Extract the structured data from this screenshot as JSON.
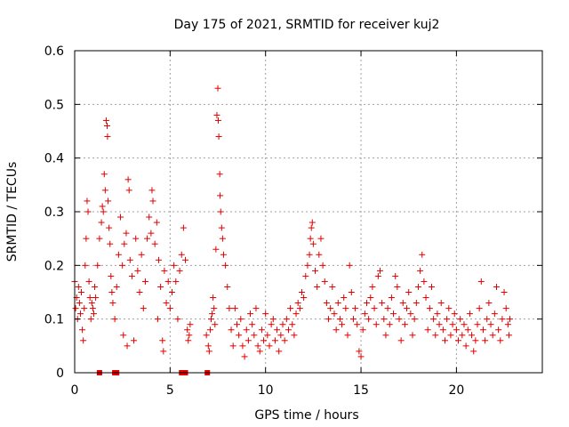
{
  "chart_data": {
    "type": "scatter",
    "title": "Day 175 of 2021, SRMTID for receiver kuj2",
    "xlabel": "GPS time / hours",
    "ylabel": "SRMTID / TECUs",
    "xlim": [
      0,
      24.5
    ],
    "ylim": [
      0,
      0.6
    ],
    "grid": true,
    "marker": "+",
    "color": "#e00000",
    "xticks": [
      0,
      5,
      10,
      15,
      20
    ],
    "xtick_labels": [
      "0",
      "5",
      "10",
      "15",
      "20"
    ],
    "yticks": [
      0,
      0.1,
      0.2,
      0.3,
      0.4,
      0.5,
      0.6
    ],
    "ytick_labels": [
      "0",
      "0.1",
      "0.2",
      "0.3",
      "0.4",
      "0.5",
      "0.6"
    ],
    "series": [
      {
        "name": "SRMTID",
        "points": [
          [
            0.0,
            0.17
          ],
          [
            0.05,
            0.12
          ],
          [
            0.1,
            0.14
          ],
          [
            0.15,
            0.1
          ],
          [
            0.2,
            0.16
          ],
          [
            0.25,
            0.13
          ],
          [
            0.3,
            0.11
          ],
          [
            0.35,
            0.15
          ],
          [
            0.4,
            0.08
          ],
          [
            0.45,
            0.06
          ],
          [
            0.5,
            0.12
          ],
          [
            0.55,
            0.2
          ],
          [
            0.6,
            0.25
          ],
          [
            0.65,
            0.32
          ],
          [
            0.7,
            0.3
          ],
          [
            0.75,
            0.17
          ],
          [
            0.8,
            0.14
          ],
          [
            0.85,
            0.1
          ],
          [
            0.9,
            0.13
          ],
          [
            0.95,
            0.12
          ],
          [
            1.0,
            0.11
          ],
          [
            1.05,
            0.16
          ],
          [
            1.1,
            0.14
          ],
          [
            1.2,
            0.2
          ],
          [
            1.3,
            0.25
          ],
          [
            1.4,
            0.28
          ],
          [
            1.45,
            0.31
          ],
          [
            1.5,
            0.3
          ],
          [
            1.55,
            0.37
          ],
          [
            1.6,
            0.34
          ],
          [
            1.65,
            0.47
          ],
          [
            1.7,
            0.46
          ],
          [
            1.72,
            0.44
          ],
          [
            1.75,
            0.32
          ],
          [
            1.8,
            0.27
          ],
          [
            1.85,
            0.24
          ],
          [
            1.9,
            0.18
          ],
          [
            1.95,
            0.15
          ],
          [
            2.0,
            0.13
          ],
          [
            2.1,
            0.1
          ],
          [
            2.2,
            0.16
          ],
          [
            2.3,
            0.22
          ],
          [
            2.4,
            0.29
          ],
          [
            2.5,
            0.2
          ],
          [
            2.55,
            0.07
          ],
          [
            2.6,
            0.24
          ],
          [
            2.7,
            0.26
          ],
          [
            2.75,
            0.05
          ],
          [
            2.8,
            0.36
          ],
          [
            2.85,
            0.34
          ],
          [
            2.9,
            0.21
          ],
          [
            3.0,
            0.18
          ],
          [
            3.1,
            0.06
          ],
          [
            3.2,
            0.25
          ],
          [
            3.3,
            0.19
          ],
          [
            3.4,
            0.15
          ],
          [
            3.5,
            0.22
          ],
          [
            3.6,
            0.12
          ],
          [
            3.7,
            0.17
          ],
          [
            3.8,
            0.25
          ],
          [
            3.9,
            0.29
          ],
          [
            4.0,
            0.26
          ],
          [
            4.05,
            0.34
          ],
          [
            4.1,
            0.32
          ],
          [
            4.2,
            0.24
          ],
          [
            4.3,
            0.28
          ],
          [
            4.35,
            0.1
          ],
          [
            4.4,
            0.21
          ],
          [
            4.5,
            0.16
          ],
          [
            4.6,
            0.06
          ],
          [
            4.65,
            0.04
          ],
          [
            4.7,
            0.19
          ],
          [
            4.8,
            0.13
          ],
          [
            4.9,
            0.17
          ],
          [
            5.0,
            0.12
          ],
          [
            5.1,
            0.15
          ],
          [
            5.2,
            0.2
          ],
          [
            5.3,
            0.17
          ],
          [
            5.4,
            0.1
          ],
          [
            5.5,
            0.19
          ],
          [
            5.6,
            0.22
          ],
          [
            5.7,
            0.27
          ],
          [
            5.8,
            0.21
          ],
          [
            5.9,
            0.08
          ],
          [
            5.95,
            0.06
          ],
          [
            6.0,
            0.07
          ],
          [
            6.05,
            0.09
          ],
          [
            6.9,
            0.07
          ],
          [
            7.0,
            0.05
          ],
          [
            7.05,
            0.04
          ],
          [
            7.1,
            0.08
          ],
          [
            7.15,
            0.1
          ],
          [
            7.2,
            0.11
          ],
          [
            7.25,
            0.14
          ],
          [
            7.3,
            0.12
          ],
          [
            7.35,
            0.09
          ],
          [
            7.4,
            0.23
          ],
          [
            7.45,
            0.48
          ],
          [
            7.5,
            0.53
          ],
          [
            7.52,
            0.47
          ],
          [
            7.55,
            0.44
          ],
          [
            7.6,
            0.37
          ],
          [
            7.62,
            0.33
          ],
          [
            7.65,
            0.3
          ],
          [
            7.7,
            0.27
          ],
          [
            7.75,
            0.25
          ],
          [
            7.8,
            0.22
          ],
          [
            7.9,
            0.2
          ],
          [
            8.0,
            0.16
          ],
          [
            8.1,
            0.12
          ],
          [
            8.2,
            0.08
          ],
          [
            8.3,
            0.05
          ],
          [
            8.4,
            0.12
          ],
          [
            8.5,
            0.09
          ],
          [
            8.6,
            0.07
          ],
          [
            8.7,
            0.1
          ],
          [
            8.8,
            0.05
          ],
          [
            8.9,
            0.03
          ],
          [
            9.0,
            0.08
          ],
          [
            9.1,
            0.06
          ],
          [
            9.2,
            0.11
          ],
          [
            9.3,
            0.09
          ],
          [
            9.4,
            0.07
          ],
          [
            9.5,
            0.12
          ],
          [
            9.6,
            0.05
          ],
          [
            9.7,
            0.04
          ],
          [
            9.8,
            0.08
          ],
          [
            9.9,
            0.06
          ],
          [
            10.0,
            0.11
          ],
          [
            10.1,
            0.07
          ],
          [
            10.2,
            0.05
          ],
          [
            10.3,
            0.09
          ],
          [
            10.4,
            0.1
          ],
          [
            10.5,
            0.06
          ],
          [
            10.6,
            0.08
          ],
          [
            10.7,
            0.04
          ],
          [
            10.8,
            0.07
          ],
          [
            10.9,
            0.09
          ],
          [
            11.0,
            0.06
          ],
          [
            11.1,
            0.1
          ],
          [
            11.2,
            0.08
          ],
          [
            11.3,
            0.12
          ],
          [
            11.4,
            0.09
          ],
          [
            11.5,
            0.07
          ],
          [
            11.6,
            0.11
          ],
          [
            11.7,
            0.13
          ],
          [
            11.8,
            0.12
          ],
          [
            11.9,
            0.15
          ],
          [
            12.0,
            0.14
          ],
          [
            12.1,
            0.18
          ],
          [
            12.2,
            0.2
          ],
          [
            12.3,
            0.22
          ],
          [
            12.35,
            0.25
          ],
          [
            12.4,
            0.27
          ],
          [
            12.45,
            0.28
          ],
          [
            12.5,
            0.24
          ],
          [
            12.6,
            0.19
          ],
          [
            12.7,
            0.16
          ],
          [
            12.8,
            0.22
          ],
          [
            12.9,
            0.25
          ],
          [
            13.0,
            0.2
          ],
          [
            13.1,
            0.17
          ],
          [
            13.2,
            0.13
          ],
          [
            13.3,
            0.1
          ],
          [
            13.4,
            0.12
          ],
          [
            13.5,
            0.16
          ],
          [
            13.6,
            0.11
          ],
          [
            13.7,
            0.08
          ],
          [
            13.8,
            0.13
          ],
          [
            13.9,
            0.1
          ],
          [
            14.0,
            0.09
          ],
          [
            14.1,
            0.14
          ],
          [
            14.2,
            0.12
          ],
          [
            14.3,
            0.07
          ],
          [
            14.4,
            0.2
          ],
          [
            14.5,
            0.15
          ],
          [
            14.6,
            0.1
          ],
          [
            14.7,
            0.12
          ],
          [
            14.8,
            0.09
          ],
          [
            14.9,
            0.04
          ],
          [
            15.0,
            0.03
          ],
          [
            15.1,
            0.08
          ],
          [
            15.2,
            0.11
          ],
          [
            15.3,
            0.13
          ],
          [
            15.4,
            0.1
          ],
          [
            15.5,
            0.14
          ],
          [
            15.6,
            0.16
          ],
          [
            15.7,
            0.12
          ],
          [
            15.8,
            0.09
          ],
          [
            15.9,
            0.18
          ],
          [
            16.0,
            0.19
          ],
          [
            16.1,
            0.13
          ],
          [
            16.2,
            0.1
          ],
          [
            16.3,
            0.07
          ],
          [
            16.4,
            0.12
          ],
          [
            16.5,
            0.09
          ],
          [
            16.6,
            0.14
          ],
          [
            16.7,
            0.11
          ],
          [
            16.8,
            0.18
          ],
          [
            16.9,
            0.16
          ],
          [
            17.0,
            0.1
          ],
          [
            17.1,
            0.06
          ],
          [
            17.2,
            0.13
          ],
          [
            17.3,
            0.09
          ],
          [
            17.4,
            0.12
          ],
          [
            17.5,
            0.15
          ],
          [
            17.6,
            0.11
          ],
          [
            17.7,
            0.07
          ],
          [
            17.8,
            0.1
          ],
          [
            17.9,
            0.13
          ],
          [
            18.0,
            0.16
          ],
          [
            18.1,
            0.19
          ],
          [
            18.2,
            0.22
          ],
          [
            18.3,
            0.17
          ],
          [
            18.4,
            0.14
          ],
          [
            18.5,
            0.08
          ],
          [
            18.6,
            0.12
          ],
          [
            18.7,
            0.16
          ],
          [
            18.8,
            0.1
          ],
          [
            18.9,
            0.07
          ],
          [
            19.0,
            0.11
          ],
          [
            19.1,
            0.09
          ],
          [
            19.2,
            0.13
          ],
          [
            19.3,
            0.08
          ],
          [
            19.4,
            0.06
          ],
          [
            19.5,
            0.1
          ],
          [
            19.6,
            0.12
          ],
          [
            19.7,
            0.07
          ],
          [
            19.8,
            0.09
          ],
          [
            19.9,
            0.11
          ],
          [
            20.0,
            0.08
          ],
          [
            20.1,
            0.06
          ],
          [
            20.2,
            0.1
          ],
          [
            20.3,
            0.07
          ],
          [
            20.4,
            0.09
          ],
          [
            20.5,
            0.05
          ],
          [
            20.6,
            0.08
          ],
          [
            20.7,
            0.11
          ],
          [
            20.8,
            0.07
          ],
          [
            20.9,
            0.04
          ],
          [
            21.0,
            0.06
          ],
          [
            21.1,
            0.09
          ],
          [
            21.2,
            0.12
          ],
          [
            21.3,
            0.17
          ],
          [
            21.4,
            0.08
          ],
          [
            21.5,
            0.06
          ],
          [
            21.6,
            0.1
          ],
          [
            21.7,
            0.13
          ],
          [
            21.8,
            0.09
          ],
          [
            21.9,
            0.07
          ],
          [
            22.0,
            0.11
          ],
          [
            22.1,
            0.16
          ],
          [
            22.2,
            0.08
          ],
          [
            22.3,
            0.06
          ],
          [
            22.4,
            0.1
          ],
          [
            22.5,
            0.15
          ],
          [
            22.6,
            0.12
          ],
          [
            22.7,
            0.09
          ],
          [
            22.75,
            0.07
          ],
          [
            22.8,
            0.1
          ]
        ]
      }
    ],
    "gap_markers_x": [
      1.3,
      2.1,
      2.2,
      5.6,
      5.8,
      6.95
    ]
  }
}
